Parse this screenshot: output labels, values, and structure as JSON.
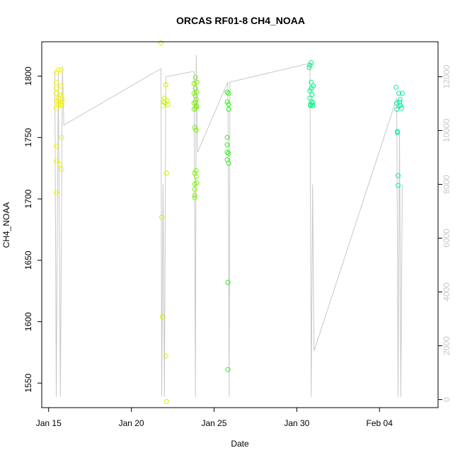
{
  "chart_data": {
    "type": "scatter",
    "title": "ORCAS RF01-8 CH4_NOAA",
    "xlabel": "Date",
    "ylabel": "CH4_NOAA",
    "x_is_date": true,
    "xlim": [
      "2016-01-14T14:00",
      "2016-02-07T13:00"
    ],
    "ylim": [
      1530,
      1828
    ],
    "ylim_right": [
      -300,
      13300
    ],
    "x_ticks": [
      {
        "value": "2016-01-15",
        "label": "Jan 15"
      },
      {
        "value": "2016-01-20",
        "label": "Jan 20"
      },
      {
        "value": "2016-01-25",
        "label": "Jan 25"
      },
      {
        "value": "2016-01-30",
        "label": "Jan 30"
      },
      {
        "value": "2016-02-04",
        "label": "Feb 04"
      }
    ],
    "y_ticks": [
      {
        "value": 1550,
        "label": "1550"
      },
      {
        "value": 1600,
        "label": "1600"
      },
      {
        "value": 1650,
        "label": "1650"
      },
      {
        "value": 1700,
        "label": "1700"
      },
      {
        "value": 1750,
        "label": "1750"
      },
      {
        "value": 1800,
        "label": "1800"
      }
    ],
    "y_ticks_right": [
      {
        "value": 0,
        "label": "0"
      },
      {
        "value": 2000,
        "label": "2000"
      },
      {
        "value": 4000,
        "label": "4000"
      },
      {
        "value": 6000,
        "label": "6000"
      },
      {
        "value": 8000,
        "label": "8000"
      },
      {
        "value": 10000,
        "label": "10000"
      },
      {
        "value": 12000,
        "label": "12000"
      }
    ],
    "grid": false,
    "legend": "none",
    "altitude_color": "#c8c8c8",
    "altitude_path": [
      [
        "2016-01-15T09:00",
        12200
      ],
      [
        "2016-01-15T11:00",
        100
      ],
      [
        "2016-01-15T14:00",
        12100
      ],
      [
        "2016-01-15T17:00",
        100
      ],
      [
        "2016-01-15T20:00",
        12400
      ],
      [
        "2016-01-15T22:00",
        10200
      ],
      [
        "2016-01-21T19:00",
        12300
      ],
      [
        "2016-01-21T20:00",
        100
      ],
      [
        "2016-01-21T22:00",
        8000
      ],
      [
        "2016-01-22T00:00",
        100
      ],
      [
        "2016-01-22T02:00",
        12000
      ],
      [
        "2016-01-23T19:00",
        12200
      ],
      [
        "2016-01-23T21:00",
        100
      ],
      [
        "2016-01-23T22:00",
        12800
      ],
      [
        "2016-01-24T00:00",
        9200
      ],
      [
        "2016-01-25T20:00",
        11800
      ],
      [
        "2016-01-25T22:00",
        100
      ],
      [
        "2016-01-25T23:00",
        11800
      ],
      [
        "2016-01-30T19:00",
        12500
      ],
      [
        "2016-01-30T21:00",
        100
      ],
      [
        "2016-01-30T23:00",
        8000
      ],
      [
        "2016-01-31T01:00",
        1800
      ],
      [
        "2016-02-05T01:00",
        11200
      ],
      [
        "2016-02-05T03:00",
        100
      ],
      [
        "2016-02-05T05:00",
        10000
      ],
      [
        "2016-02-05T07:00",
        100
      ],
      [
        "2016-02-05T09:00",
        8000
      ]
    ],
    "series": [
      {
        "color": "#f2f200",
        "points": [
          [
            "2016-01-15T11:00",
            1803
          ],
          [
            "2016-01-15T11:00",
            1795
          ],
          [
            "2016-01-15T11:00",
            1790
          ],
          [
            "2016-01-15T11:00",
            1786
          ],
          [
            "2016-01-15T11:00",
            1780
          ],
          [
            "2016-01-15T11:00",
            1774
          ],
          [
            "2016-01-15T11:00",
            1743
          ],
          [
            "2016-01-15T11:00",
            1731
          ],
          [
            "2016-01-15T11:00",
            1705
          ],
          [
            "2016-01-15T14:00",
            1805
          ],
          [
            "2016-01-15T14:00",
            1782
          ],
          [
            "2016-01-15T14:00",
            1779
          ],
          [
            "2016-01-15T14:00",
            1776
          ],
          [
            "2016-01-15T16:00",
            1728
          ],
          [
            "2016-01-15T16:00",
            1785
          ],
          [
            "2016-01-15T17:00",
            1777
          ],
          [
            "2016-01-15T18:00",
            1805
          ],
          [
            "2016-01-15T18:00",
            1792
          ],
          [
            "2016-01-15T18:00",
            1784
          ],
          [
            "2016-01-15T18:00",
            1779
          ],
          [
            "2016-01-15T18:00",
            1776
          ],
          [
            "2016-01-15T19:00",
            1750
          ],
          [
            "2016-01-15T19:00",
            1724
          ],
          [
            "2016-01-15T20:00",
            1781
          ]
        ]
      },
      {
        "color": "#c6f700",
        "points": [
          [
            "2016-01-21T19:00",
            1827
          ],
          [
            "2016-01-21T20:00",
            1685
          ],
          [
            "2016-01-21T21:00",
            1604
          ],
          [
            "2016-01-21T22:00",
            1776
          ],
          [
            "2016-01-21T23:00",
            1779
          ],
          [
            "2016-01-22T00:00",
            1782
          ],
          [
            "2016-01-22T01:00",
            1778
          ],
          [
            "2016-01-22T02:00",
            1793
          ],
          [
            "2016-01-22T02:00",
            1572
          ],
          [
            "2016-01-22T03:00",
            1535
          ],
          [
            "2016-01-22T03:00",
            1721
          ],
          [
            "2016-01-22T04:00",
            1780
          ],
          [
            "2016-01-22T05:00",
            1777
          ]
        ]
      },
      {
        "color": "#7af200",
        "points": [
          [
            "2016-01-23T19:00",
            1794
          ],
          [
            "2016-01-23T19:00",
            1786
          ],
          [
            "2016-01-23T19:00",
            1778
          ],
          [
            "2016-01-23T19:00",
            1773
          ],
          [
            "2016-01-23T20:00",
            1758
          ],
          [
            "2016-01-23T20:00",
            1721
          ],
          [
            "2016-01-23T20:00",
            1712
          ],
          [
            "2016-01-23T20:00",
            1708
          ],
          [
            "2016-01-23T20:00",
            1703
          ],
          [
            "2016-01-23T20:00",
            1701
          ],
          [
            "2016-01-23T21:00",
            1799
          ],
          [
            "2016-01-23T21:00",
            1790
          ],
          [
            "2016-01-23T21:00",
            1784
          ],
          [
            "2016-01-23T21:00",
            1779
          ],
          [
            "2016-01-23T21:00",
            1774
          ],
          [
            "2016-01-23T22:00",
            1781
          ],
          [
            "2016-01-23T22:00",
            1776
          ],
          [
            "2016-01-23T22:00",
            1756
          ],
          [
            "2016-01-23T22:00",
            1723
          ],
          [
            "2016-01-23T22:00",
            1718
          ],
          [
            "2016-01-23T23:00",
            1713
          ],
          [
            "2016-01-23T23:00",
            1795
          ],
          [
            "2016-01-23T23:00",
            1787
          ],
          [
            "2016-01-23T23:00",
            1775
          ]
        ]
      },
      {
        "color": "#2ef21a",
        "points": [
          [
            "2016-01-25T19:00",
            1787
          ],
          [
            "2016-01-25T19:00",
            1779
          ],
          [
            "2016-01-25T19:00",
            1750
          ],
          [
            "2016-01-25T19:00",
            1744
          ],
          [
            "2016-01-25T19:00",
            1738
          ],
          [
            "2016-01-25T19:00",
            1732
          ],
          [
            "2016-01-25T20:00",
            1632
          ],
          [
            "2016-01-25T20:00",
            1561
          ],
          [
            "2016-01-25T21:00",
            1786
          ],
          [
            "2016-01-25T21:00",
            1777
          ],
          [
            "2016-01-25T21:00",
            1773
          ],
          [
            "2016-01-25T21:00",
            1737
          ],
          [
            "2016-01-25T21:00",
            1729
          ]
        ]
      },
      {
        "color": "#00f27a",
        "points": [
          [
            "2016-01-30T18:00",
            1807
          ],
          [
            "2016-01-30T19:00",
            1809
          ],
          [
            "2016-01-30T19:00",
            1788
          ],
          [
            "2016-01-30T19:00",
            1782
          ],
          [
            "2016-01-30T20:00",
            1777
          ],
          [
            "2016-01-30T20:00",
            1776
          ],
          [
            "2016-01-30T21:00",
            1811
          ],
          [
            "2016-01-30T21:00",
            1795
          ],
          [
            "2016-01-30T21:00",
            1790
          ],
          [
            "2016-01-30T22:00",
            1785
          ],
          [
            "2016-01-30T22:00",
            1779
          ],
          [
            "2016-01-30T23:00",
            1778
          ],
          [
            "2016-01-30T23:00",
            1776
          ],
          [
            "2016-01-31T00:00",
            1792
          ]
        ]
      },
      {
        "color": "#00f2a8",
        "points": [
          [
            "2016-02-05T00:00",
            1791
          ],
          [
            "2016-02-05T01:00",
            1778
          ],
          [
            "2016-02-05T01:00",
            1773
          ],
          [
            "2016-02-05T02:00",
            1755
          ],
          [
            "2016-02-05T02:00",
            1754
          ],
          [
            "2016-02-05T03:00",
            1719
          ],
          [
            "2016-02-05T03:00",
            1711
          ],
          [
            "2016-02-05T04:00",
            1786
          ],
          [
            "2016-02-05T05:00",
            1779
          ],
          [
            "2016-02-05T05:00",
            1776
          ],
          [
            "2016-02-05T06:00",
            1781
          ],
          [
            "2016-02-05T07:00",
            1776
          ],
          [
            "2016-02-05T08:00",
            1774
          ],
          [
            "2016-02-05T09:00",
            1786
          ]
        ]
      }
    ]
  }
}
